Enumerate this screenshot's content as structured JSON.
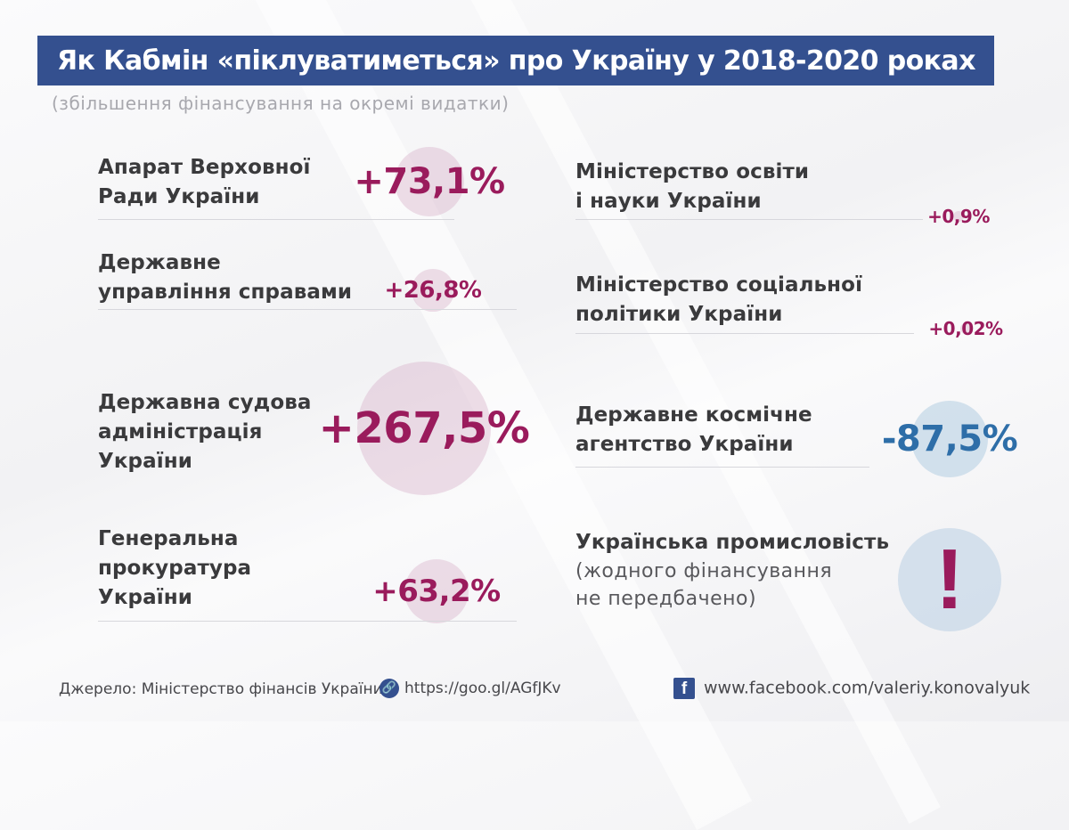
{
  "title": "Як Кабмін «піклуватиметься» про Україну у 2018-2020 роках",
  "subtitle": "(збільшення фінансування на окремі видатки)",
  "colors": {
    "title_bg": "#34508f",
    "positive": "#9a1b5c",
    "negative": "#2e6ea8"
  },
  "chart_data": {
    "type": "bubble",
    "unit": "%",
    "items": [
      {
        "label_lines": [
          "Апарат Верховної",
          "Ради України"
        ],
        "value": 73.1,
        "display": "+73,1%"
      },
      {
        "label_lines": [
          "Державне",
          "управління справами"
        ],
        "value": 26.8,
        "display": "+26,8%"
      },
      {
        "label_lines": [
          "Державна судова",
          "адміністрація",
          "України"
        ],
        "value": 267.5,
        "display": "+267,5%"
      },
      {
        "label_lines": [
          "Генеральна",
          "прокуратура",
          "України"
        ],
        "value": 63.2,
        "display": "+63,2%"
      },
      {
        "label_lines": [
          "Міністерство освіти",
          "і науки України"
        ],
        "value": 0.9,
        "display": "+0,9%"
      },
      {
        "label_lines": [
          "Міністерство соціальної",
          "політики України"
        ],
        "value": 0.02,
        "display": "+0,02%"
      },
      {
        "label_lines": [
          "Державне космічне",
          "агентство України"
        ],
        "value": -87.5,
        "display": "-87,5%"
      },
      {
        "label_lines": [
          "Українська промисловість"
        ],
        "note_lines": [
          "(жодного фінансування",
          "не передбачено)"
        ],
        "value": null,
        "display": "!"
      }
    ]
  },
  "footer": {
    "source": "Джерело: Міністерство фінансів України",
    "link": "https://goo.gl/AGfJKv",
    "link_icon": "link-icon",
    "facebook_icon": "facebook-icon",
    "facebook": "www.facebook.com/valeriy.konovalyuk"
  }
}
